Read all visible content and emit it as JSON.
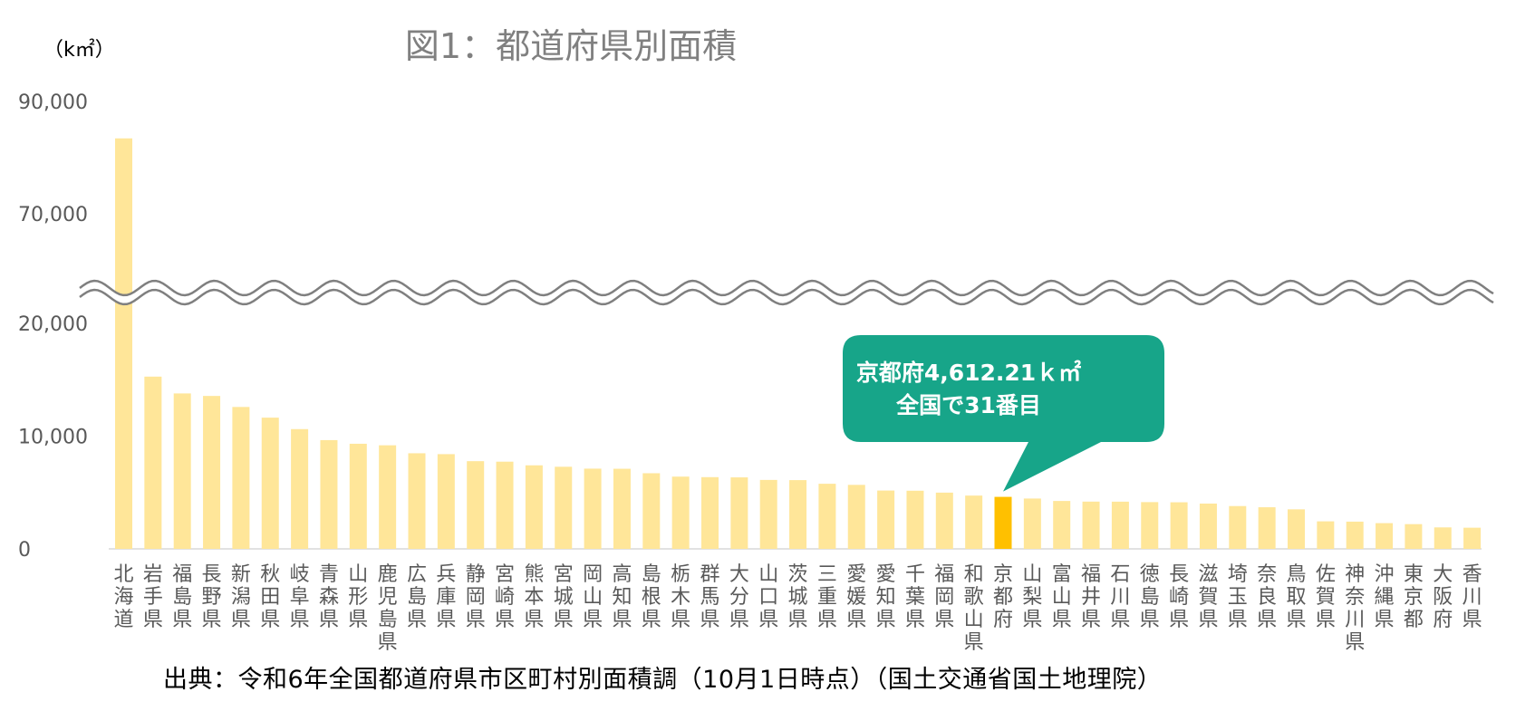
{
  "chart_data": {
    "type": "bar",
    "title": "図1：都道府県別面積",
    "ylabel": "（k㎡）",
    "y_ticks": [
      "90,000",
      "70,000",
      "20,000",
      "10,000",
      "0"
    ],
    "axis_break": {
      "from": 22000,
      "to": 68000
    },
    "ylim": [
      0,
      90000
    ],
    "highlight": "京都府",
    "colors": {
      "bar": "#FFE699",
      "highlight": "#FFC000",
      "callout": "#17A589",
      "title": "#808080",
      "axis_text": "#595959"
    },
    "categories": [
      "北海道",
      "岩手県",
      "福島県",
      "長野県",
      "新潟県",
      "秋田県",
      "岐阜県",
      "青森県",
      "山形県",
      "鹿児島県",
      "広島県",
      "兵庫県",
      "静岡県",
      "宮崎県",
      "熊本県",
      "宮城県",
      "岡山県",
      "高知県",
      "島根県",
      "栃木県",
      "群馬県",
      "大分県",
      "山口県",
      "茨城県",
      "三重県",
      "愛媛県",
      "愛知県",
      "千葉県",
      "福岡県",
      "和歌山県",
      "京都府",
      "山梨県",
      "富山県",
      "福井県",
      "石川県",
      "徳島県",
      "長崎県",
      "滋賀県",
      "埼玉県",
      "奈良県",
      "鳥取県",
      "佐賀県",
      "神奈川県",
      "沖縄県",
      "東京都",
      "大阪府",
      "香川県"
    ],
    "values": [
      83424,
      15275,
      13784,
      13562,
      12584,
      11638,
      10621,
      9646,
      9323,
      9186,
      8479,
      8401,
      7777,
      7734,
      7409,
      7282,
      7115,
      7104,
      6708,
      6408,
      6362,
      6341,
      6113,
      6098,
      5774,
      5676,
      5173,
      5157,
      4988,
      4725,
      4612.21,
      4465,
      4248,
      4191,
      4186,
      4147,
      4131,
      4017,
      3798,
      3691,
      3507,
      2441,
      2416,
      2282,
      2194,
      1905,
      1877
    ]
  },
  "annotation": {
    "line1": "京都府4,612.21ｋ㎡",
    "line2": "全国で31番目"
  },
  "source": "出典：令和6年全国都道府県市区町村別面積調（10月1日時点）（国土交通省国土地理院）"
}
